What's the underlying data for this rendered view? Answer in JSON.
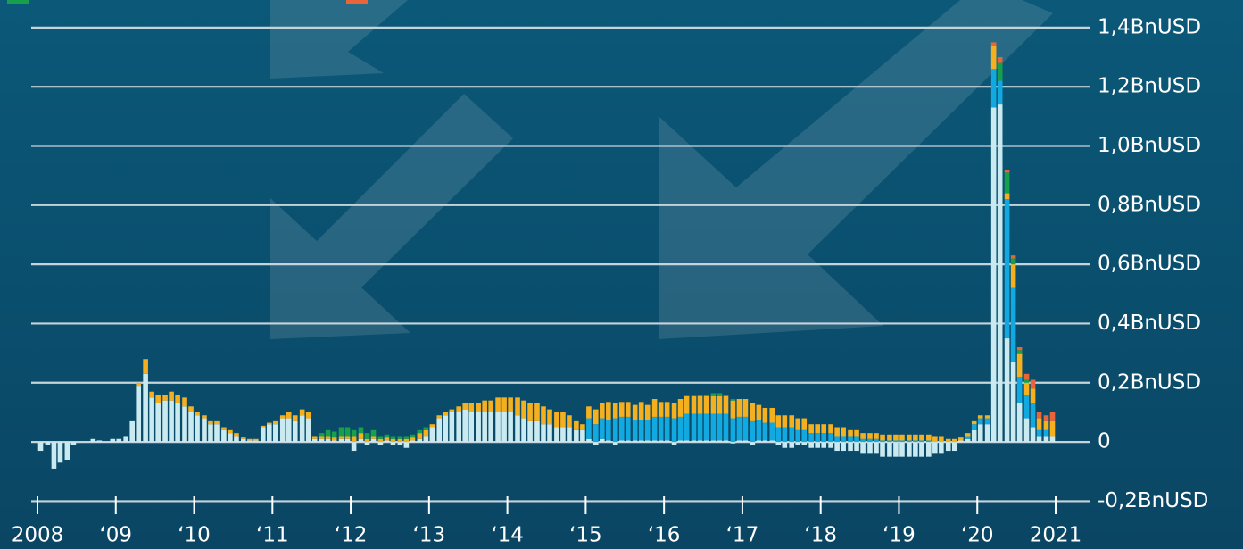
{
  "chart_data": {
    "type": "stacked-bar",
    "x": [
      2008.04,
      2008.13,
      2008.21,
      2008.29,
      2008.38,
      2008.46,
      2008.54,
      2008.63,
      2008.71,
      2008.79,
      2008.88,
      2008.96,
      2009.04,
      2009.13,
      2009.21,
      2009.29,
      2009.38,
      2009.46,
      2009.54,
      2009.63,
      2009.71,
      2009.79,
      2009.88,
      2009.96,
      2010.04,
      2010.13,
      2010.21,
      2010.29,
      2010.38,
      2010.46,
      2010.54,
      2010.63,
      2010.71,
      2010.79,
      2010.88,
      2010.96,
      2011.04,
      2011.13,
      2011.21,
      2011.29,
      2011.38,
      2011.46,
      2011.54,
      2011.63,
      2011.71,
      2011.79,
      2011.88,
      2011.96,
      2012.04,
      2012.13,
      2012.21,
      2012.29,
      2012.38,
      2012.46,
      2012.54,
      2012.63,
      2012.71,
      2012.79,
      2012.88,
      2012.96,
      2013.04,
      2013.13,
      2013.21,
      2013.29,
      2013.38,
      2013.46,
      2013.54,
      2013.63,
      2013.71,
      2013.79,
      2013.88,
      2013.96,
      2014.04,
      2014.13,
      2014.21,
      2014.29,
      2014.38,
      2014.46,
      2014.54,
      2014.63,
      2014.71,
      2014.79,
      2014.88,
      2014.96,
      2015.04,
      2015.13,
      2015.21,
      2015.29,
      2015.38,
      2015.46,
      2015.54,
      2015.63,
      2015.71,
      2015.79,
      2015.88,
      2015.96,
      2016.04,
      2016.13,
      2016.21,
      2016.29,
      2016.38,
      2016.46,
      2016.54,
      2016.63,
      2016.71,
      2016.79,
      2016.88,
      2016.96,
      2017.04,
      2017.13,
      2017.21,
      2017.29,
      2017.38,
      2017.46,
      2017.54,
      2017.63,
      2017.71,
      2017.79,
      2017.88,
      2017.96,
      2018.04,
      2018.13,
      2018.21,
      2018.29,
      2018.38,
      2018.46,
      2018.54,
      2018.63,
      2018.71,
      2018.79,
      2018.88,
      2018.96,
      2019.04,
      2019.13,
      2019.21,
      2019.29,
      2019.38,
      2019.46,
      2019.54,
      2019.63,
      2019.71,
      2019.79,
      2019.88,
      2019.96,
      2020.04,
      2020.13,
      2020.21,
      2020.29,
      2020.38,
      2020.46,
      2020.54,
      2020.63,
      2020.71,
      2020.79,
      2020.88,
      2020.96
    ],
    "series": [
      {
        "color": "#c9eaf0",
        "values": [
          -0.03,
          -0.01,
          -0.09,
          -0.07,
          -0.06,
          -0.01,
          0,
          0,
          0.01,
          0.005,
          0,
          0.01,
          0.01,
          0.02,
          0.07,
          0.19,
          0.23,
          0.15,
          0.13,
          0.14,
          0.14,
          0.13,
          0.12,
          0.1,
          0.09,
          0.08,
          0.06,
          0.06,
          0.04,
          0.03,
          0.02,
          0.01,
          0.005,
          0.005,
          0.05,
          0.06,
          0.06,
          0.08,
          0.08,
          0.07,
          0.09,
          0.08,
          0.01,
          0.01,
          0.01,
          0.005,
          0.01,
          0.01,
          -0.03,
          0.01,
          -0.01,
          0.01,
          -0.01,
          0.005,
          -0.01,
          -0.01,
          -0.02,
          0.005,
          0.01,
          0.02,
          0.05,
          0.08,
          0.09,
          0.1,
          0.1,
          0.11,
          0.1,
          0.1,
          0.1,
          0.1,
          0.1,
          0.1,
          0.1,
          0.09,
          0.08,
          0.07,
          0.07,
          0.06,
          0.06,
          0.05,
          0.05,
          0.05,
          0.04,
          0.04,
          0.01,
          -0.01,
          0.01,
          0.005,
          -0.01,
          0.005,
          0.005,
          0.005,
          0.005,
          0.005,
          0.005,
          0.005,
          0.005,
          -0.01,
          0.005,
          0.005,
          0.005,
          0.005,
          0.005,
          0.005,
          0.005,
          0.005,
          -0.005,
          0.005,
          0.005,
          -0.01,
          0.005,
          0.005,
          0.005,
          -0.01,
          -0.02,
          -0.02,
          -0.01,
          -0.01,
          -0.02,
          -0.02,
          -0.02,
          -0.02,
          -0.03,
          -0.03,
          -0.03,
          -0.03,
          -0.04,
          -0.04,
          -0.04,
          -0.05,
          -0.05,
          -0.05,
          -0.05,
          -0.05,
          -0.05,
          -0.05,
          -0.05,
          -0.04,
          -0.04,
          -0.03,
          -0.03,
          0.005,
          0.01,
          0.04,
          0.06,
          0.06,
          1.13,
          1.14,
          0.35,
          0.27,
          0.13,
          0.08,
          0.05,
          0.02,
          0.02,
          0.02
        ]
      },
      {
        "color": "#12a9e1",
        "values": [
          0,
          0,
          0,
          0,
          0,
          0,
          0,
          0,
          0,
          0,
          0,
          0,
          0,
          0,
          0,
          0,
          0,
          0,
          0,
          0,
          0,
          0,
          0,
          0,
          0,
          0,
          0,
          0,
          0,
          0,
          0,
          0,
          0,
          0,
          0,
          0,
          0,
          0,
          0,
          0,
          0,
          0,
          0,
          0,
          0,
          0,
          0,
          0,
          0,
          0,
          0,
          0,
          0,
          0,
          0,
          0,
          0,
          0,
          0,
          0,
          0,
          0,
          0,
          0,
          0,
          0,
          0,
          0,
          0,
          0,
          0,
          0,
          0,
          0,
          0,
          0,
          0,
          0,
          0,
          0,
          0,
          0,
          0,
          0,
          0.07,
          0.06,
          0.07,
          0.07,
          0.08,
          0.08,
          0.08,
          0.07,
          0.07,
          0.07,
          0.08,
          0.08,
          0.08,
          0.08,
          0.08,
          0.09,
          0.09,
          0.09,
          0.09,
          0.09,
          0.09,
          0.09,
          0.08,
          0.08,
          0.08,
          0.07,
          0.07,
          0.06,
          0.06,
          0.05,
          0.05,
          0.05,
          0.04,
          0.04,
          0.03,
          0.03,
          0.03,
          0.03,
          0.02,
          0.02,
          0.02,
          0.02,
          0.01,
          0.01,
          0.01,
          0.005,
          0.005,
          0.005,
          0.005,
          0.005,
          0.005,
          0.005,
          0.005,
          0,
          0,
          0,
          0,
          0,
          0.01,
          0.02,
          0.02,
          0.02,
          0.13,
          0.08,
          0.47,
          0.25,
          0.09,
          0.08,
          0.08,
          0.02,
          0.02,
          0
        ]
      },
      {
        "color": "#f5b01f",
        "values": [
          0,
          0,
          0,
          0,
          0,
          0,
          0,
          0,
          0,
          0,
          0,
          0,
          0,
          0,
          0,
          0.01,
          0.05,
          0.02,
          0.03,
          0.02,
          0.03,
          0.03,
          0.03,
          0.02,
          0.01,
          0.01,
          0.01,
          0.01,
          0.01,
          0.01,
          0.01,
          0.005,
          0.005,
          0.005,
          0.005,
          0.005,
          0.01,
          0.01,
          0.02,
          0.02,
          0.02,
          0.02,
          0.01,
          0.01,
          0.01,
          0.01,
          0.01,
          0.01,
          0.02,
          0.02,
          0.01,
          0.01,
          0.01,
          0.01,
          0.01,
          0.01,
          0.01,
          0.01,
          0.02,
          0.02,
          0.01,
          0.01,
          0.01,
          0.01,
          0.02,
          0.02,
          0.03,
          0.03,
          0.04,
          0.04,
          0.05,
          0.05,
          0.05,
          0.06,
          0.06,
          0.06,
          0.06,
          0.06,
          0.05,
          0.05,
          0.05,
          0.04,
          0.03,
          0.02,
          0.04,
          0.05,
          0.05,
          0.06,
          0.05,
          0.05,
          0.05,
          0.05,
          0.06,
          0.05,
          0.06,
          0.05,
          0.05,
          0.05,
          0.06,
          0.06,
          0.06,
          0.06,
          0.06,
          0.06,
          0.06,
          0.06,
          0.06,
          0.06,
          0.06,
          0.06,
          0.05,
          0.05,
          0.05,
          0.04,
          0.04,
          0.04,
          0.04,
          0.04,
          0.03,
          0.03,
          0.03,
          0.03,
          0.03,
          0.03,
          0.02,
          0.02,
          0.02,
          0.02,
          0.02,
          0.02,
          0.02,
          0.02,
          0.02,
          0.02,
          0.02,
          0.02,
          0.02,
          0.02,
          0.02,
          0.01,
          0.01,
          0.01,
          0.01,
          0.01,
          0.01,
          0.01,
          0.08,
          0,
          0.02,
          0.08,
          0.08,
          0.04,
          0.05,
          0.04,
          0.03,
          0.05
        ]
      },
      {
        "color": "#17a04b",
        "values": [
          0,
          0,
          0,
          0,
          0,
          0,
          0,
          0,
          0,
          0,
          0,
          0,
          0,
          0,
          0,
          0,
          0,
          0,
          0,
          0,
          0,
          0,
          0,
          0,
          0,
          0,
          0,
          0,
          0,
          0,
          0,
          0,
          0,
          0,
          0,
          0,
          0,
          0,
          0,
          0,
          0,
          0,
          0,
          0.01,
          0.02,
          0.02,
          0.03,
          0.03,
          0.02,
          0.02,
          0.02,
          0.02,
          0.01,
          0.01,
          0.01,
          0.01,
          0.01,
          0.01,
          0.01,
          0.01,
          0,
          0,
          0,
          0,
          0,
          0,
          0,
          0,
          0,
          0,
          0,
          0,
          0,
          0,
          0,
          0,
          0,
          0,
          0,
          0,
          0,
          0,
          0,
          0,
          0,
          0,
          0,
          0,
          0,
          0,
          0,
          0,
          0,
          0,
          0,
          0,
          0,
          0,
          0,
          0,
          0,
          0.005,
          0.005,
          0.01,
          0.01,
          0.005,
          0.005,
          0,
          0,
          0,
          0,
          0,
          0,
          0,
          0,
          0,
          0,
          0,
          0,
          0,
          0,
          0,
          0,
          0,
          0,
          0,
          0,
          0,
          0,
          0,
          0,
          0,
          0,
          0,
          0,
          0,
          0,
          0,
          0,
          0,
          0,
          0,
          0,
          0,
          0,
          0,
          0,
          0.06,
          0.07,
          0.02,
          0.01,
          0.01,
          0,
          0,
          0,
          0
        ]
      },
      {
        "color": "#e8653a",
        "values": [
          0,
          0,
          0,
          0,
          0,
          0,
          0,
          0,
          0,
          0,
          0,
          0,
          0,
          0,
          0,
          0,
          0,
          0,
          0,
          0,
          0,
          0,
          0,
          0,
          0,
          0,
          0,
          0,
          0,
          0,
          0,
          0,
          0,
          0,
          0,
          0,
          0,
          0,
          0,
          0,
          0,
          0,
          0,
          0,
          0,
          0,
          0,
          0,
          0,
          0,
          0,
          0,
          0,
          0,
          0,
          0,
          0,
          0,
          0,
          0,
          0,
          0,
          0,
          0,
          0,
          0,
          0,
          0,
          0,
          0,
          0,
          0,
          0,
          0,
          0,
          0,
          0,
          0,
          0,
          0,
          0,
          0,
          0,
          0,
          0,
          0,
          0,
          0,
          0,
          0,
          0,
          0,
          0,
          0,
          0,
          0,
          0,
          0,
          0,
          0,
          0,
          0,
          0,
          0,
          0,
          0,
          0,
          0,
          0,
          0,
          0,
          0,
          0,
          0,
          0,
          0,
          0,
          0,
          0,
          0,
          0,
          0,
          0,
          0,
          0,
          0,
          0,
          0,
          0,
          0,
          0,
          0,
          0,
          0,
          0,
          0,
          0,
          0,
          0,
          0,
          0,
          0,
          0,
          0,
          0,
          0,
          0.01,
          0.02,
          0.01,
          0.01,
          0.01,
          0.02,
          0.03,
          0.02,
          0.02,
          0.03
        ]
      }
    ],
    "xlim": [
      2008,
      2021
    ],
    "xticks": [
      {
        "value": 2008,
        "label": "2008"
      },
      {
        "value": 2009,
        "label": "‘09"
      },
      {
        "value": 2010,
        "label": "‘10"
      },
      {
        "value": 2011,
        "label": "‘11"
      },
      {
        "value": 2012,
        "label": "‘12"
      },
      {
        "value": 2013,
        "label": "‘13"
      },
      {
        "value": 2014,
        "label": "‘14"
      },
      {
        "value": 2015,
        "label": "‘15"
      },
      {
        "value": 2016,
        "label": "‘16"
      },
      {
        "value": 2017,
        "label": "‘17"
      },
      {
        "value": 2018,
        "label": "‘18"
      },
      {
        "value": 2019,
        "label": "‘19"
      },
      {
        "value": 2020,
        "label": "‘20"
      },
      {
        "value": 2021,
        "label": "2021"
      }
    ],
    "ylim": [
      -0.25,
      1.49
    ],
    "yticks": [
      {
        "value": -0.2,
        "label": "-0,2BnUSD"
      },
      0,
      {
        "value": 0.2,
        "label": "0,2BnUSD"
      },
      {
        "value": 0.4,
        "label": "0,4BnUSD"
      },
      {
        "value": 0.6,
        "label": "0,6BnUSD"
      },
      {
        "value": 0.8,
        "label": "0,8BnUSD"
      },
      {
        "value": 1.0,
        "label": "1,0BnUSD"
      },
      {
        "value": 1.2,
        "label": "1,2BnUSD"
      },
      {
        "value": 1.4,
        "label": "1,4BnUSD"
      }
    ],
    "grid": true
  }
}
